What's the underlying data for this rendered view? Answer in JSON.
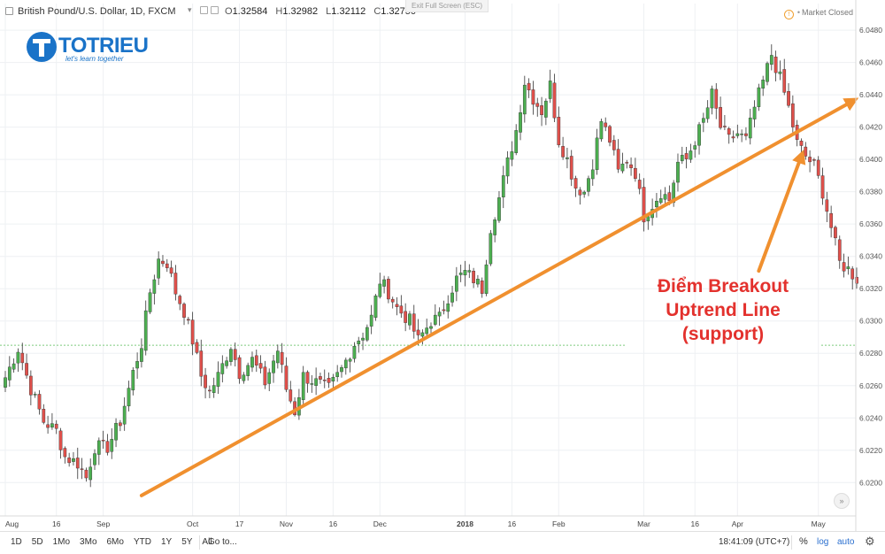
{
  "header": {
    "title": "British Pound/U.S. Dollar, 1D, FXCM",
    "ohlc": [
      {
        "label": "O",
        "value": "1.32584"
      },
      {
        "label": "H",
        "value": "1.32982"
      },
      {
        "label": "L",
        "value": "1.32112"
      },
      {
        "label": "C",
        "value": "1.32750"
      }
    ],
    "exit_fullscreen": "Exit Full Screen (ESC)",
    "market_status": "Market Closed",
    "status_icon": "warning-circle-icon"
  },
  "logo": {
    "brand": "TOTRIEU",
    "slogan": "let's learn together"
  },
  "annotation": {
    "lines": [
      "Điểm Breakout",
      "Uptrend Line",
      "(support)"
    ],
    "color": "#e3312d"
  },
  "bottom_bar": {
    "ranges": [
      "1D",
      "5D",
      "1Mo",
      "3Mo",
      "6Mo",
      "YTD",
      "1Y",
      "5Y",
      "All"
    ],
    "goto": "Go to...",
    "time": "18:41:09 (UTC+7)",
    "percent": "%",
    "log": "log",
    "auto": "auto",
    "settings_icon": "gear-icon"
  },
  "colors": {
    "up": "#4caf50",
    "down": "#e0504b",
    "trendline": "#f0902f",
    "grid": "#eef0f3",
    "reference_line": "#7ecb7e"
  },
  "chart_data": {
    "type": "candlestick",
    "y_ticks": [
      "6.0200",
      "6.0220",
      "6.0240",
      "6.0260",
      "6.0280",
      "6.0300",
      "6.0320",
      "6.0340",
      "6.0360",
      "6.0380",
      "6.0400",
      "6.0420",
      "6.0440",
      "6.0460",
      "6.0480"
    ],
    "y_tick_values": [
      6.02,
      6.022,
      6.024,
      6.026,
      6.028,
      6.03,
      6.032,
      6.034,
      6.036,
      6.038,
      6.04,
      6.042,
      6.044,
      6.046,
      6.048
    ],
    "ylim": [
      6.0181,
      6.0491
    ],
    "x_ticks": [
      "Aug",
      "16",
      "Sep",
      "Oct",
      "17",
      "Nov",
      "16",
      "Dec",
      "2018",
      "16",
      "Feb",
      "Mar",
      "16",
      "Apr",
      "May"
    ],
    "x_tick_index": [
      0,
      12,
      23,
      44,
      55,
      66,
      77,
      88,
      108,
      119,
      130,
      150,
      162,
      172,
      191
    ],
    "x_tick_bold": [
      false,
      false,
      false,
      false,
      false,
      false,
      false,
      false,
      true,
      false,
      false,
      false,
      false,
      false,
      false
    ],
    "reference_level": 6.0285,
    "trendline": {
      "from": {
        "index": 32,
        "value": 6.0192
      },
      "to": {
        "index": 199,
        "value": 6.0436
      }
    },
    "arrow": {
      "from": {
        "index": 177,
        "value": 6.0331
      },
      "to": {
        "index": 187,
        "value": 6.0402
      }
    },
    "price_path": [
      [
        0,
        6.0265
      ],
      [
        3,
        6.0283
      ],
      [
        6,
        6.0258
      ],
      [
        9,
        6.0238
      ],
      [
        12,
        6.0232
      ],
      [
        14,
        6.0216
      ],
      [
        17,
        6.0212
      ],
      [
        19,
        6.0203
      ],
      [
        21,
        6.0222
      ],
      [
        24,
        6.0222
      ],
      [
        27,
        6.0238
      ],
      [
        30,
        6.0268
      ],
      [
        32,
        6.0286
      ],
      [
        34,
        6.0318
      ],
      [
        36,
        6.0338
      ],
      [
        38,
        6.0336
      ],
      [
        40,
        6.0318
      ],
      [
        42,
        6.0306
      ],
      [
        44,
        6.0288
      ],
      [
        46,
        6.0266
      ],
      [
        48,
        6.0256
      ],
      [
        50,
        6.0266
      ],
      [
        53,
        6.0285
      ],
      [
        55,
        6.0268
      ],
      [
        58,
        6.0276
      ],
      [
        61,
        6.0262
      ],
      [
        64,
        6.0282
      ],
      [
        66,
        6.0258
      ],
      [
        68,
        6.0244
      ],
      [
        70,
        6.0266
      ],
      [
        73,
        6.0262
      ],
      [
        76,
        6.0258
      ],
      [
        79,
        6.027
      ],
      [
        82,
        6.0286
      ],
      [
        84,
        6.0292
      ],
      [
        86,
        6.0302
      ],
      [
        88,
        6.0325
      ],
      [
        90,
        6.0318
      ],
      [
        92,
        6.0308
      ],
      [
        95,
        6.03
      ],
      [
        97,
        6.0288
      ],
      [
        100,
        6.03
      ],
      [
        102,
        6.0302
      ],
      [
        104,
        6.0315
      ],
      [
        106,
        6.0326
      ],
      [
        108,
        6.033
      ],
      [
        110,
        6.0326
      ],
      [
        112,
        6.032
      ],
      [
        114,
        6.0358
      ],
      [
        116,
        6.0376
      ],
      [
        118,
        6.0398
      ],
      [
        120,
        6.0418
      ],
      [
        122,
        6.0448
      ],
      [
        124,
        6.0438
      ],
      [
        126,
        6.043
      ],
      [
        128,
        6.0446
      ],
      [
        130,
        6.0412
      ],
      [
        132,
        6.04
      ],
      [
        134,
        6.0383
      ],
      [
        136,
        6.038
      ],
      [
        138,
        6.0398
      ],
      [
        140,
        6.0424
      ],
      [
        142,
        6.0412
      ],
      [
        144,
        6.0392
      ],
      [
        146,
        6.04
      ],
      [
        148,
        6.0392
      ],
      [
        150,
        6.0365
      ],
      [
        152,
        6.0372
      ],
      [
        154,
        6.038
      ],
      [
        156,
        6.0375
      ],
      [
        158,
        6.0398
      ],
      [
        160,
        6.04
      ],
      [
        162,
        6.0412
      ],
      [
        164,
        6.0424
      ],
      [
        166,
        6.044
      ],
      [
        168,
        6.042
      ],
      [
        170,
        6.0412
      ],
      [
        172,
        6.0416
      ],
      [
        174,
        6.0412
      ],
      [
        176,
        6.0432
      ],
      [
        178,
        6.0448
      ],
      [
        180,
        6.0465
      ],
      [
        182,
        6.045
      ],
      [
        184,
        6.0432
      ],
      [
        186,
        6.041
      ],
      [
        188,
        6.0402
      ],
      [
        190,
        6.0396
      ],
      [
        192,
        6.038
      ],
      [
        194,
        6.0358
      ],
      [
        196,
        6.0336
      ],
      [
        198,
        6.0332
      ],
      [
        200,
        6.0326
      ]
    ]
  }
}
